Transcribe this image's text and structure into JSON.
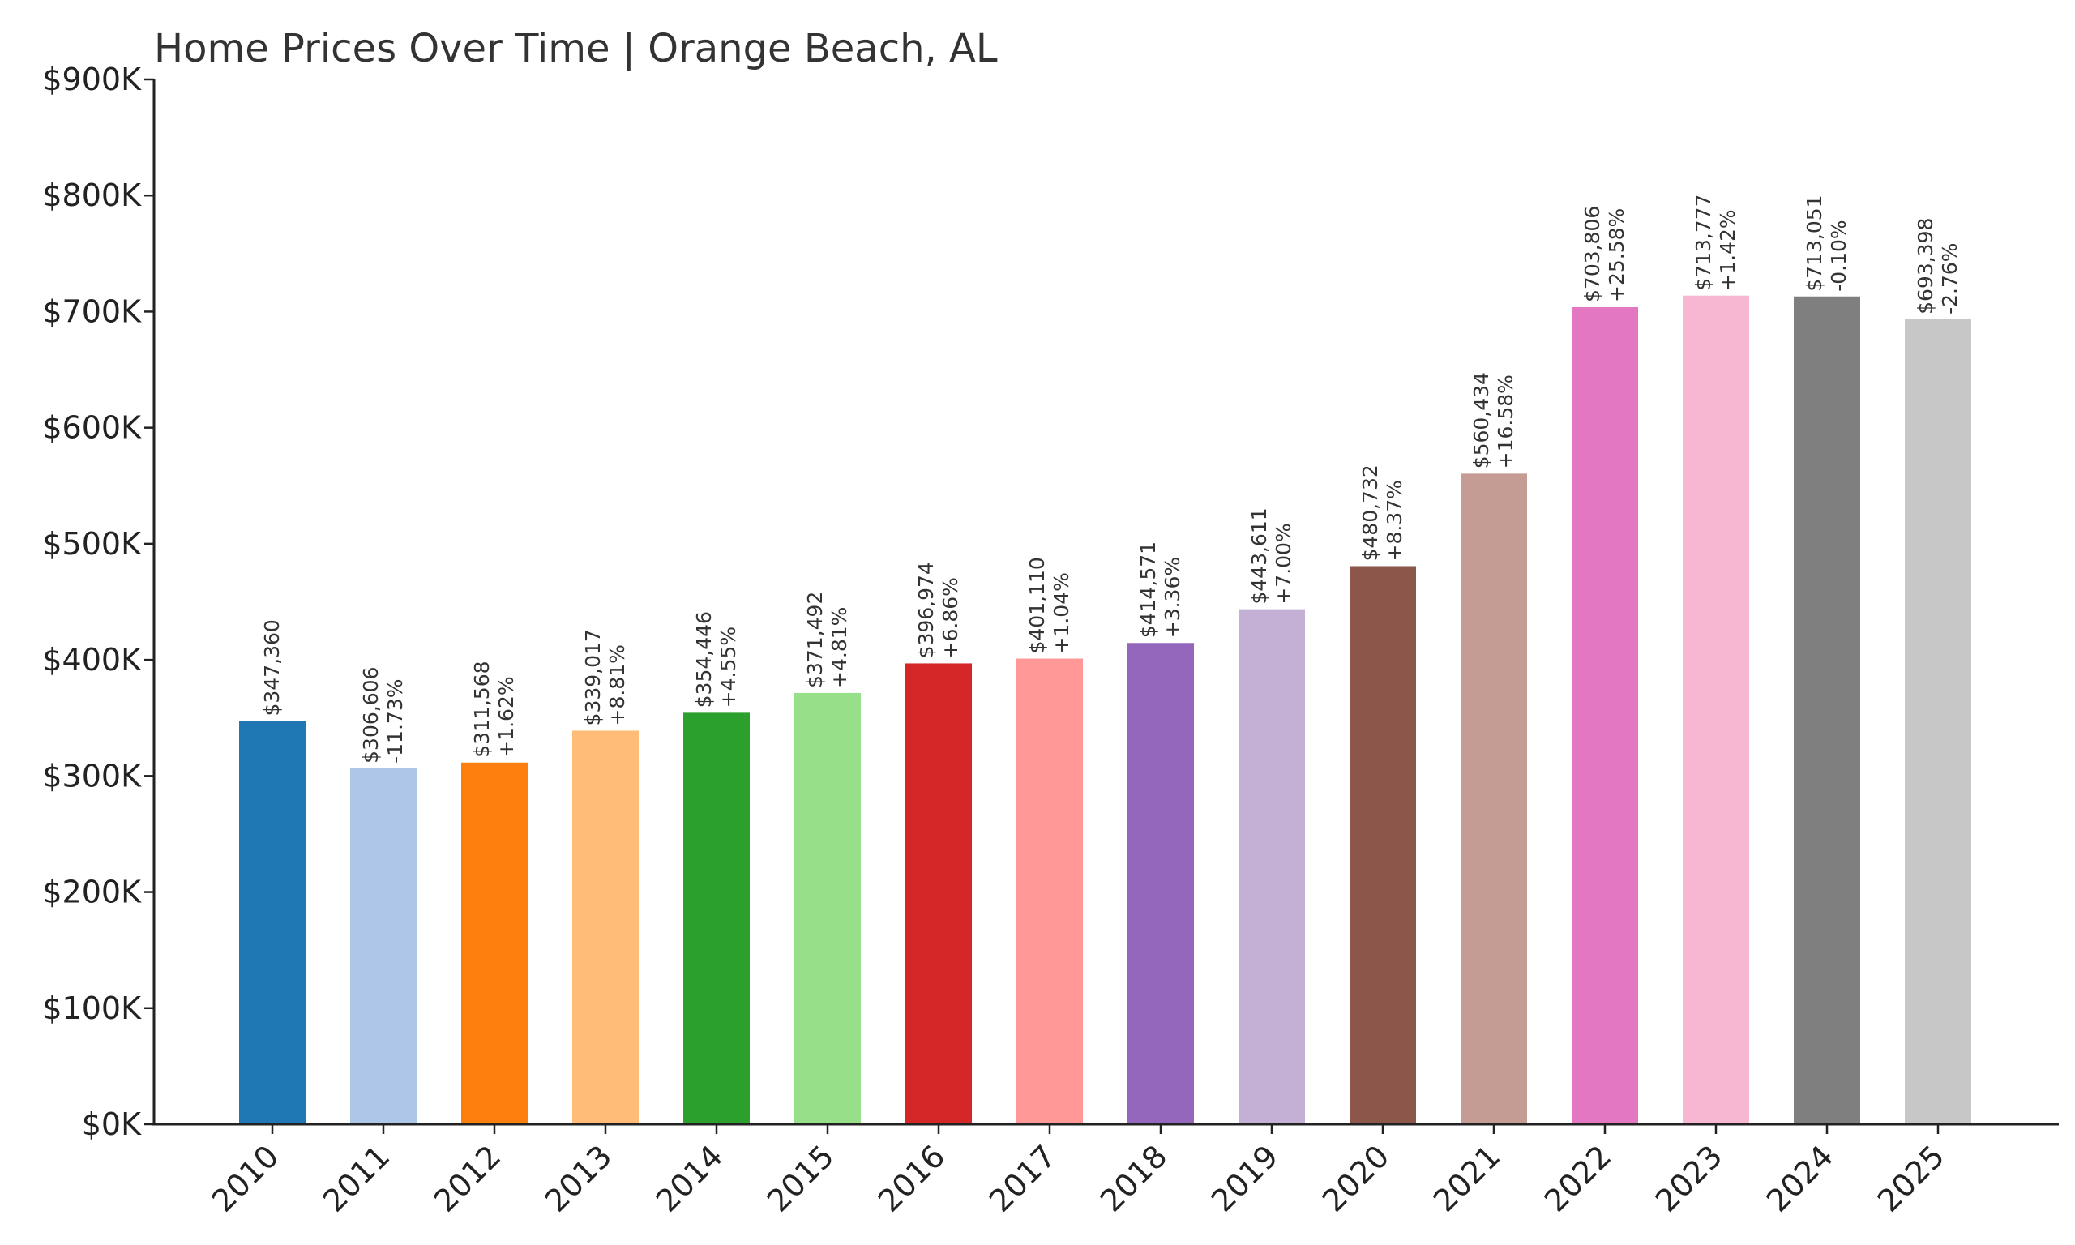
{
  "chart_data": {
    "type": "bar",
    "title": "Home Prices Over Time | Orange Beach, AL",
    "xlabel": "",
    "ylabel": "",
    "ylim": [
      0,
      900000
    ],
    "grid": false,
    "yticks": [
      {
        "value": 0,
        "label": "$0K"
      },
      {
        "value": 100000,
        "label": "$100K"
      },
      {
        "value": 200000,
        "label": "$200K"
      },
      {
        "value": 300000,
        "label": "$300K"
      },
      {
        "value": 400000,
        "label": "$400K"
      },
      {
        "value": 500000,
        "label": "$500K"
      },
      {
        "value": 600000,
        "label": "$600K"
      },
      {
        "value": 700000,
        "label": "$700K"
      },
      {
        "value": 800000,
        "label": "$800K"
      },
      {
        "value": 900000,
        "label": "$900K"
      }
    ],
    "categories": [
      "2010",
      "2011",
      "2012",
      "2013",
      "2014",
      "2015",
      "2016",
      "2017",
      "2018",
      "2019",
      "2020",
      "2021",
      "2022",
      "2023",
      "2024",
      "2025"
    ],
    "values": [
      347360,
      306606,
      311568,
      339017,
      354446,
      371492,
      396974,
      401110,
      414571,
      443611,
      480732,
      560434,
      703806,
      713777,
      713051,
      693398
    ],
    "value_labels": [
      "$347,360",
      "$306,606",
      "$311,568",
      "$339,017",
      "$354,446",
      "$371,492",
      "$396,974",
      "$401,110",
      "$414,571",
      "$443,611",
      "$480,732",
      "$560,434",
      "$703,806",
      "$713,777",
      "$713,051",
      "$693,398"
    ],
    "change_labels": [
      "",
      "-11.73%",
      "+1.62%",
      "+8.81%",
      "+4.55%",
      "+4.81%",
      "+6.86%",
      "+1.04%",
      "+3.36%",
      "+7.00%",
      "+8.37%",
      "+16.58%",
      "+25.58%",
      "+1.42%",
      "-0.10%",
      "-2.76%"
    ],
    "colors": [
      "#1f77b4",
      "#aec7e8",
      "#ff7f0e",
      "#ffbb78",
      "#2ca02c",
      "#98df8a",
      "#d62728",
      "#ff9896",
      "#9467bd",
      "#c5b0d5",
      "#8c564b",
      "#c49c94",
      "#e377c2",
      "#f7b6d2",
      "#7f7f7f",
      "#c7c7c7"
    ]
  }
}
